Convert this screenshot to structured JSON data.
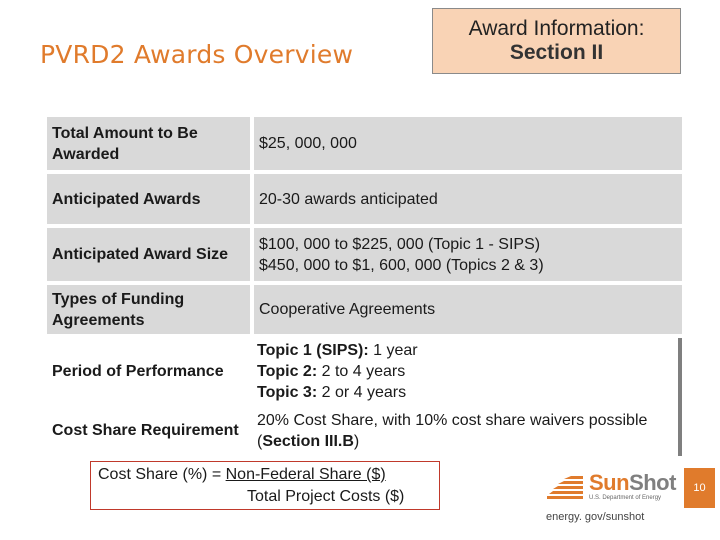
{
  "title": "PVRD2 Awards Overview",
  "award_box": {
    "line1": "Award Information:",
    "line2": "Section II"
  },
  "rows": [
    {
      "label": "Total Amount to Be Awarded",
      "value": "$25, 000, 000"
    },
    {
      "label": "Anticipated Awards",
      "value": "20-30 awards anticipated"
    },
    {
      "label": "Anticipated Award Size",
      "value_line1": "$100, 000 to $225, 000 (Topic 1 - SIPS)",
      "value_line2": "$450, 000 to $1, 600, 000 (Topics 2 & 3)"
    },
    {
      "label": "Types of Funding Agreements",
      "value": "Cooperative Agreements"
    },
    {
      "label": "Period of Performance",
      "t1_bold": "Topic 1 (SIPS):",
      "t1_rest": " 1 year",
      "t2_bold": "Topic 2:",
      "t2_rest": " 2 to 4 years",
      "t3_bold": "Topic 3:",
      "t3_rest": " 2 or 4 years"
    },
    {
      "label": "Cost Share Requirement",
      "value_pre": "20% Cost Share, with 10% cost share waivers possible (",
      "value_bold": "Section III.B",
      "value_post": ")"
    }
  ],
  "formula": {
    "prefix": "Cost Share (%) = ",
    "numerator": "Non-Federal Share ($)",
    "denominator": "Total Project Costs ($)"
  },
  "logo": {
    "sun": "Sun",
    "shot": "Shot",
    "subtitle": "U.S. Department of Energy"
  },
  "footer_url": "energy. gov/sunshot",
  "page_number": "10",
  "colors": {
    "accent": "#e07b2c",
    "box_fill": "#f9d3b5",
    "row_shade": "#d9d9d9",
    "formula_border": "#c0392b"
  }
}
